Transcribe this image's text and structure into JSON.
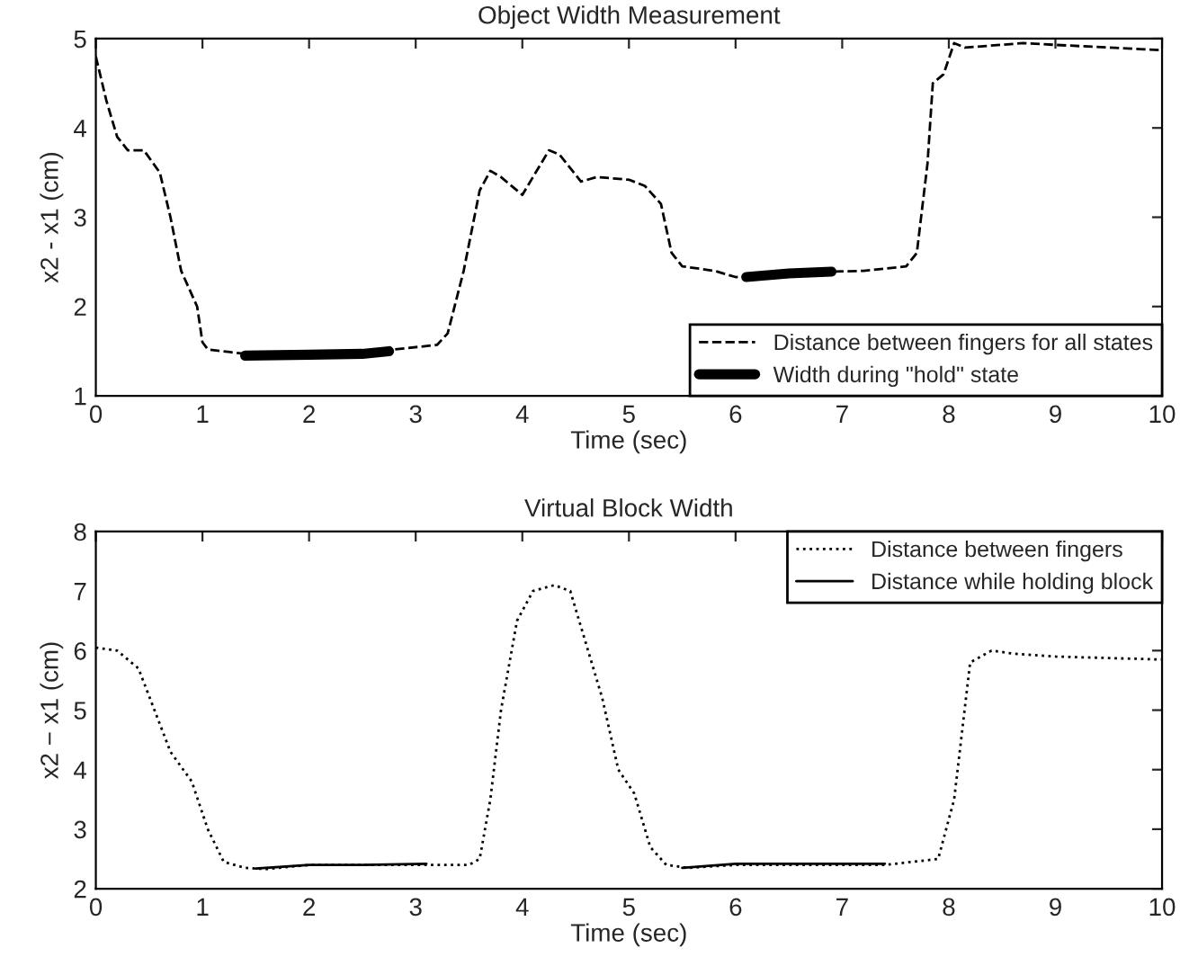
{
  "chart_data": [
    {
      "type": "line",
      "title": "Object Width Measurement",
      "xlabel": "Time (sec)",
      "ylabel": "x2 - x1 (cm)",
      "xlim": [
        0,
        10
      ],
      "ylim": [
        1,
        5
      ],
      "xticks": [
        0,
        1,
        2,
        3,
        4,
        5,
        6,
        7,
        8,
        9,
        10
      ],
      "yticks": [
        1,
        2,
        3,
        4,
        5
      ],
      "grid": false,
      "legend": "bottom right",
      "series": [
        {
          "name": "Distance between fingers for all states",
          "color": "#000000",
          "line_style": "dashed",
          "x": [
            0,
            0.1,
            0.2,
            0.3,
            0.45,
            0.6,
            0.7,
            0.8,
            0.95,
            1.0,
            1.05,
            1.4,
            2.0,
            2.5,
            2.8,
            3.2,
            3.3,
            3.45,
            3.6,
            3.7,
            3.8,
            4.0,
            4.1,
            4.25,
            4.35,
            4.55,
            4.7,
            5.0,
            5.15,
            5.3,
            5.4,
            5.5,
            5.8,
            6.0,
            6.3,
            6.9,
            7.2,
            7.6,
            7.7,
            7.8,
            7.85,
            7.95,
            8.05,
            8.15,
            8.7,
            9.0,
            10.0
          ],
          "values": [
            4.8,
            4.3,
            3.9,
            3.75,
            3.75,
            3.5,
            3.0,
            2.4,
            2.0,
            1.6,
            1.52,
            1.47,
            1.46,
            1.47,
            1.52,
            1.57,
            1.7,
            2.4,
            3.3,
            3.52,
            3.45,
            3.25,
            3.45,
            3.75,
            3.7,
            3.4,
            3.45,
            3.42,
            3.35,
            3.15,
            2.6,
            2.45,
            2.4,
            2.33,
            2.36,
            2.39,
            2.4,
            2.45,
            2.6,
            3.6,
            4.5,
            4.6,
            4.95,
            4.9,
            4.95,
            4.93,
            4.87
          ]
        },
        {
          "name": "Width during \"hold\" state",
          "color": "#000000",
          "line_style": "solid",
          "x": [
            1.4,
            2.0,
            2.5,
            2.75,
            4.0,
            6.1,
            6.5,
            6.9
          ],
          "values": [
            1.45,
            1.46,
            1.47,
            1.5,
            null,
            2.33,
            2.37,
            2.39
          ]
        }
      ]
    },
    {
      "type": "line",
      "title": "Virtual Block Width",
      "xlabel": "Time (sec)",
      "ylabel": "x2 − x1 (cm)",
      "xlim": [
        0,
        10
      ],
      "ylim": [
        2,
        8
      ],
      "xticks": [
        0,
        1,
        2,
        3,
        4,
        5,
        6,
        7,
        8,
        9,
        10
      ],
      "yticks": [
        2,
        3,
        4,
        5,
        6,
        7,
        8
      ],
      "grid": false,
      "legend": "top right",
      "series": [
        {
          "name": "Distance between fingers",
          "color": "#000000",
          "line_style": "dotted",
          "x": [
            0,
            0.2,
            0.4,
            0.55,
            0.7,
            0.9,
            1.05,
            1.2,
            1.4,
            1.6,
            2.0,
            3.2,
            3.5,
            3.6,
            3.7,
            3.8,
            3.95,
            4.1,
            4.3,
            4.45,
            4.75,
            4.9,
            5.05,
            5.2,
            5.35,
            5.55,
            6.0,
            7.4,
            7.9,
            8.05,
            8.2,
            8.4,
            8.6,
            9.0,
            10.0
          ],
          "values": [
            6.05,
            6.0,
            5.7,
            5.0,
            4.3,
            3.8,
            3.0,
            2.45,
            2.35,
            2.33,
            2.4,
            2.4,
            2.4,
            2.5,
            3.5,
            5.0,
            6.5,
            7.0,
            7.1,
            7.0,
            5.2,
            4.0,
            3.6,
            2.7,
            2.4,
            2.35,
            2.4,
            2.4,
            2.5,
            3.5,
            5.8,
            6.0,
            5.95,
            5.9,
            5.85
          ]
        },
        {
          "name": "Distance while holding block",
          "color": "#000000",
          "line_style": "solid",
          "x": [
            1.5,
            2.0,
            2.5,
            3.1,
            4.0,
            5.5,
            6.0,
            7.4
          ],
          "values": [
            2.34,
            2.4,
            2.4,
            2.42,
            null,
            2.35,
            2.42,
            2.42
          ]
        }
      ]
    }
  ]
}
